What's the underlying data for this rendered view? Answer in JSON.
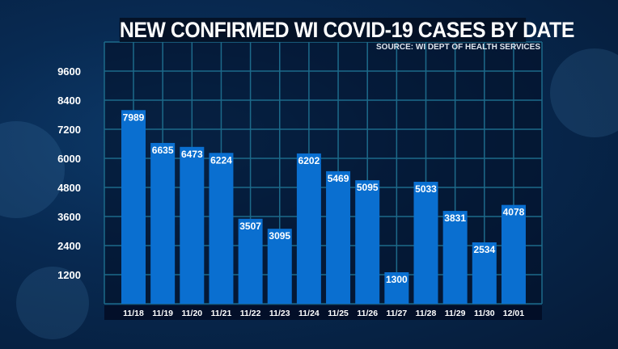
{
  "chart_data": {
    "type": "bar",
    "title": "NEW CONFIRMED WI COVID-19 CASES BY DATE",
    "subtitle": "SOURCE: WI DEPT OF HEALTH SERVICES",
    "categories": [
      "11/18",
      "11/19",
      "11/20",
      "11/21",
      "11/22",
      "11/23",
      "11/24",
      "11/25",
      "11/26",
      "11/27",
      "11/28",
      "11/29",
      "11/30",
      "12/01"
    ],
    "values": [
      7989,
      6635,
      6473,
      6224,
      3507,
      3095,
      6202,
      5469,
      5095,
      1300,
      5033,
      3831,
      2534,
      4078
    ],
    "yticks": [
      1200,
      2400,
      3600,
      4800,
      6000,
      7200,
      8400,
      9600
    ],
    "ylim": [
      0,
      10800
    ],
    "xlabel": "",
    "ylabel": "",
    "grid": true,
    "colors": {
      "bar": "#0a6fd0",
      "grid": "#1d6a8a",
      "label_bg": "#0a6fd0"
    }
  }
}
